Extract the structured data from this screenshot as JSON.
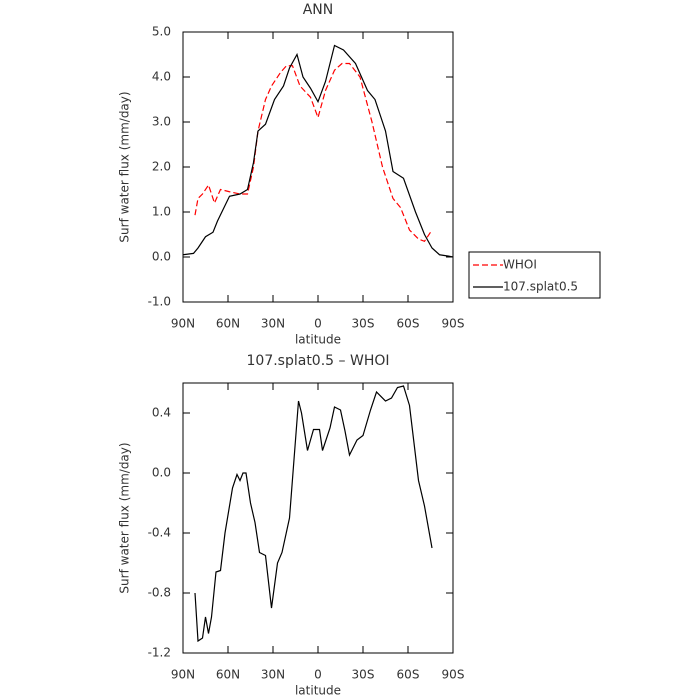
{
  "chart_data": [
    {
      "type": "line",
      "title": "ANN",
      "xlabel": "latitude",
      "ylabel": "Surf water flux (mm/day)",
      "xlim": [
        90,
        -90
      ],
      "xticks": [
        {
          "value": 90,
          "label": "90N"
        },
        {
          "value": 60,
          "label": "60N"
        },
        {
          "value": 30,
          "label": "30N"
        },
        0,
        {
          "value": -30,
          "label": "30S"
        },
        {
          "value": -60,
          "label": "60S"
        },
        {
          "value": -90,
          "label": "90S"
        }
      ],
      "ylim": [
        -1,
        5
      ],
      "yticks": [
        {
          "value": 5,
          "label": "5.0"
        },
        {
          "value": 4,
          "label": "4.0"
        },
        {
          "value": 3,
          "label": "3.0"
        },
        {
          "value": 2,
          "label": "2.0"
        },
        {
          "value": 1,
          "label": "1.0"
        },
        {
          "value": 0,
          "label": "0.0"
        },
        {
          "value": -1,
          "label": "-1.0"
        }
      ],
      "legend": true,
      "series": [
        {
          "name": "WHOI",
          "color": "#ff0000",
          "line_style": "dashed",
          "x": [
            82,
            80,
            77,
            73,
            69,
            65,
            59,
            52,
            47,
            43,
            40,
            35,
            31,
            25,
            21,
            17,
            12,
            5,
            0,
            -5,
            -11,
            -16,
            -21,
            -28,
            -36,
            -43,
            -50,
            -55,
            -61,
            -67,
            -71,
            -76
          ],
          "values": [
            0.93,
            1.3,
            1.4,
            1.6,
            1.2,
            1.5,
            1.45,
            1.4,
            1.4,
            2.0,
            2.8,
            3.5,
            3.8,
            4.1,
            4.25,
            4.25,
            3.8,
            3.55,
            3.1,
            3.7,
            4.15,
            4.3,
            4.3,
            4.0,
            3.0,
            2.0,
            1.3,
            1.1,
            0.6,
            0.4,
            0.35,
            0.6
          ]
        },
        {
          "name": "107.splat0.5",
          "color": "#000000",
          "line_style": "solid",
          "x": [
            90,
            83,
            80,
            75,
            70,
            67,
            59,
            52,
            47,
            43,
            40,
            35,
            29,
            23,
            19,
            14,
            10,
            5,
            0,
            -5,
            -11,
            -17,
            -25,
            -33,
            -38,
            -45,
            -50,
            -57,
            -65,
            -71,
            -76,
            -81,
            -87,
            -90
          ],
          "values": [
            0.05,
            0.08,
            0.2,
            0.45,
            0.55,
            0.8,
            1.35,
            1.4,
            1.5,
            2.1,
            2.8,
            2.95,
            3.5,
            3.8,
            4.2,
            4.5,
            4.0,
            3.75,
            3.45,
            3.9,
            4.7,
            4.6,
            4.3,
            3.7,
            3.5,
            2.8,
            1.9,
            1.75,
            1.0,
            0.5,
            0.2,
            0.05,
            0.02,
            0
          ]
        }
      ]
    },
    {
      "type": "line",
      "title": "107.splat0.5 – WHOI",
      "xlabel": "latitude",
      "ylabel": "Surf water flux (mm/day)",
      "xlim": [
        90,
        -90
      ],
      "xticks": [
        {
          "value": 90,
          "label": "90N"
        },
        {
          "value": 60,
          "label": "60N"
        },
        {
          "value": 30,
          "label": "30N"
        },
        0,
        {
          "value": -30,
          "label": "30S"
        },
        {
          "value": -60,
          "label": "60S"
        },
        {
          "value": -90,
          "label": "90S"
        }
      ],
      "ylim": [
        -1.2,
        0.6
      ],
      "yticks": [
        0.4,
        {
          "value": 0,
          "label": "0.0"
        },
        -0.4,
        -0.8,
        -1.2
      ],
      "series": [
        {
          "color": "#000000",
          "line_style": "solid",
          "x": [
            82,
            80,
            77,
            75,
            73,
            71,
            68,
            65,
            62,
            57,
            54,
            52,
            50,
            48,
            45,
            42,
            39,
            35,
            31,
            27,
            24,
            19,
            13,
            11,
            7,
            3,
            -1,
            -3,
            -8,
            -11,
            -15,
            -18,
            -21,
            -26,
            -30,
            -35,
            -39,
            -45,
            -49,
            -53,
            -57,
            -61,
            -67,
            -71,
            -76
          ],
          "values": [
            -0.8,
            -1.12,
            -1.1,
            -0.96,
            -1.07,
            -0.96,
            -0.66,
            -0.65,
            -0.4,
            -0.1,
            -0.01,
            -0.05,
            0.0,
            0.0,
            -0.2,
            -0.33,
            -0.53,
            -0.55,
            -0.9,
            -0.6,
            -0.53,
            -0.3,
            0.48,
            0.4,
            0.15,
            0.29,
            0.29,
            0.15,
            0.3,
            0.44,
            0.42,
            0.28,
            0.12,
            0.22,
            0.25,
            0.42,
            0.54,
            0.48,
            0.5,
            0.57,
            0.58,
            0.45,
            -0.05,
            -0.22,
            -0.5
          ]
        }
      ]
    }
  ]
}
